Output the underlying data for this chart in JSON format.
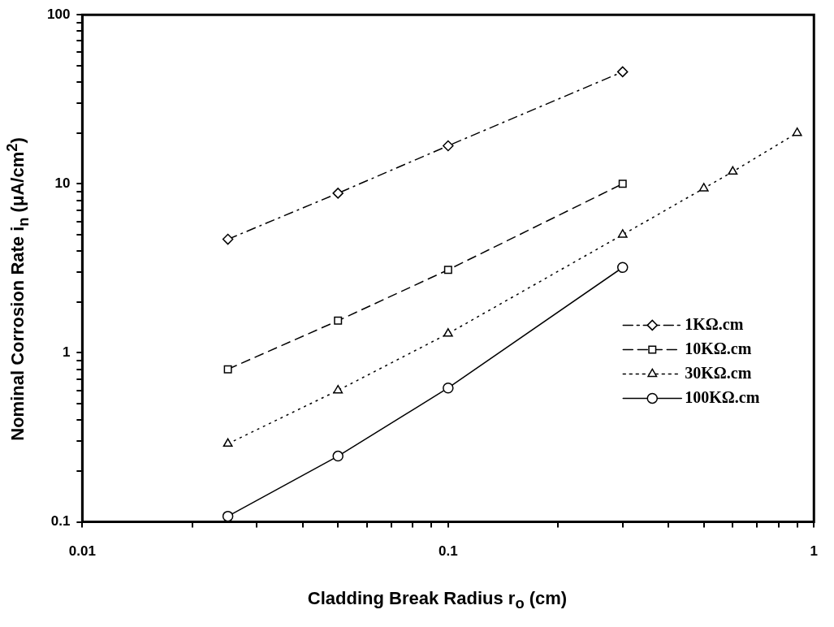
{
  "chart_data": {
    "type": "line",
    "xlabel": "Cladding Break Radius r$_{o}$ (cm)",
    "ylabel": "Nominal Corrosion Rate i$_{n}$ (μA/cm$^{2}$)",
    "log": "xy",
    "grid": false,
    "legend": "right",
    "xlim": [
      0.01,
      1
    ],
    "ylim": [
      0.1,
      100
    ],
    "xticks": [
      0.01,
      {
        "value": 0.02,
        "label": null
      },
      {
        "value": 0.03,
        "label": null
      },
      {
        "value": 0.04,
        "label": null
      },
      {
        "value": 0.05,
        "label": null
      },
      {
        "value": 0.06,
        "label": null
      },
      {
        "value": 0.07,
        "label": null
      },
      {
        "value": 0.08,
        "label": null
      },
      {
        "value": 0.09,
        "label": null
      },
      0.1,
      {
        "value": 0.2,
        "label": null
      },
      {
        "value": 0.3,
        "label": null
      },
      {
        "value": 0.4,
        "label": null
      },
      {
        "value": 0.5,
        "label": null
      },
      {
        "value": 0.6,
        "label": null
      },
      {
        "value": 0.7,
        "label": null
      },
      {
        "value": 0.8,
        "label": null
      },
      {
        "value": 0.9,
        "label": null
      },
      1
    ],
    "yticks": [
      0.1,
      {
        "value": 0.2,
        "label": null
      },
      {
        "value": 0.3,
        "label": null
      },
      {
        "value": 0.4,
        "label": null
      },
      {
        "value": 0.5,
        "label": null
      },
      {
        "value": 0.6,
        "label": null
      },
      {
        "value": 0.7,
        "label": null
      },
      {
        "value": 0.8,
        "label": null
      },
      {
        "value": 0.9,
        "label": null
      },
      1,
      {
        "value": 2,
        "label": null
      },
      {
        "value": 3,
        "label": null
      },
      {
        "value": 4,
        "label": null
      },
      {
        "value": 5,
        "label": null
      },
      {
        "value": 6,
        "label": null
      },
      {
        "value": 7,
        "label": null
      },
      {
        "value": 8,
        "label": null
      },
      {
        "value": 9,
        "label": null
      },
      10,
      {
        "value": 20,
        "label": null
      },
      {
        "value": 30,
        "label": null
      },
      {
        "value": 40,
        "label": null
      },
      {
        "value": 50,
        "label": null
      },
      {
        "value": 60,
        "label": null
      },
      {
        "value": 70,
        "label": null
      },
      {
        "value": 80,
        "label": null
      },
      {
        "value": 90,
        "label": null
      },
      100
    ],
    "series": [
      {
        "name": "1KΩ.cm",
        "color": "#000000",
        "marker": "diamond",
        "line_style": "dashdot",
        "x": [
          0.025,
          0.05,
          0.1,
          0.3
        ],
        "values": [
          4.7,
          8.8,
          16.8,
          46
        ]
      },
      {
        "name": "10KΩ.cm",
        "color": "#000000",
        "marker": "square",
        "line_style": "dashed",
        "x": [
          0.025,
          0.05,
          0.1,
          0.3
        ],
        "values": [
          0.8,
          1.55,
          3.1,
          10
        ]
      },
      {
        "name": "30KΩ.cm",
        "color": "#000000",
        "marker": "triangle",
        "line_style": "dotted",
        "x": [
          0.025,
          0.05,
          0.1,
          0.3,
          0.5,
          0.6,
          0.9
        ],
        "values": [
          0.29,
          0.6,
          1.3,
          5.0,
          9.4,
          11.8,
          20
        ]
      },
      {
        "name": "100KΩ.cm",
        "color": "#000000",
        "marker": "circle",
        "line_style": "solid",
        "x": [
          0.025,
          0.05,
          0.1,
          0.3
        ],
        "values": [
          0.108,
          0.245,
          0.62,
          3.2
        ]
      }
    ]
  }
}
